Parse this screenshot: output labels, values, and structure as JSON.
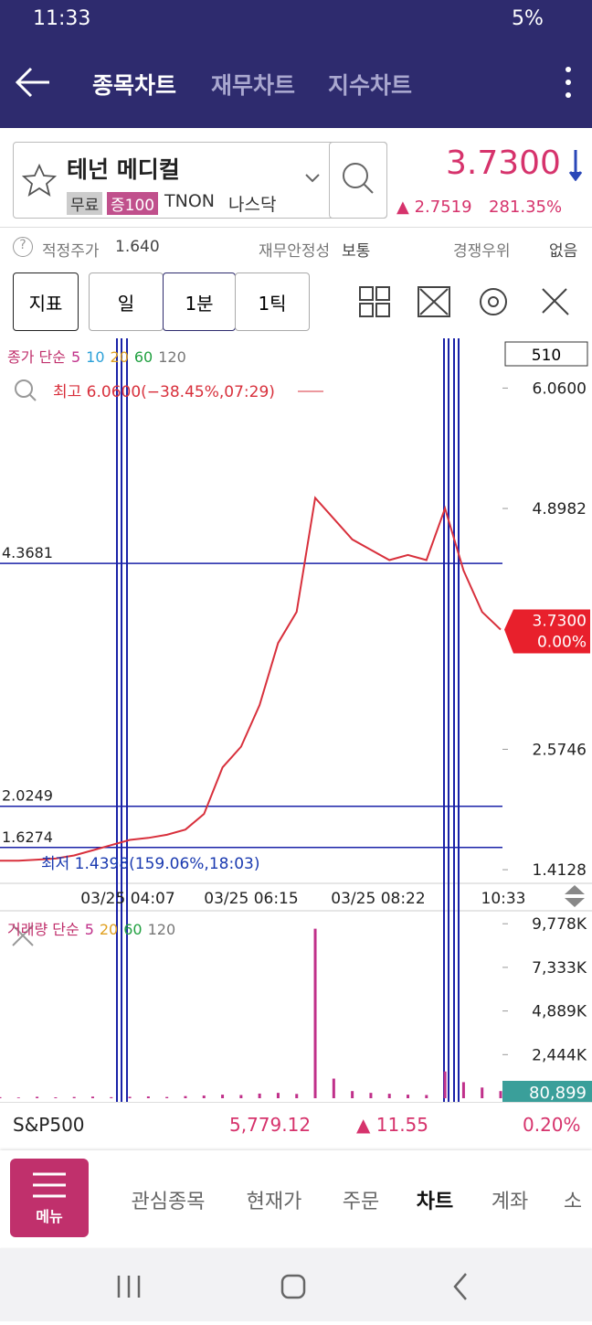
{
  "status_bar": {
    "time": "11:33",
    "battery": "5%"
  },
  "header": {
    "tabs": [
      "종목차트",
      "재무차트",
      "지수차트"
    ]
  },
  "stock": {
    "name": "테넌 메디컬",
    "tags": [
      "무료",
      "증100"
    ],
    "ticker": "TNON",
    "market": "나스닥",
    "price": "3.7300",
    "change": "2.7519",
    "change_pct": "281.35%"
  },
  "info": {
    "items": [
      {
        "label": "적정주가",
        "value": "1.640"
      },
      {
        "label": "재무안정성",
        "value": "보통"
      },
      {
        "label": "경쟁우위",
        "value": "없음"
      }
    ]
  },
  "toolbar": {
    "buttons": [
      "지표",
      "일",
      "1분",
      "1틱"
    ]
  },
  "chart_data": [
    {
      "type": "line",
      "legend_title": "종가 단순",
      "ma": [
        {
          "name": "5",
          "color": "#c0308a"
        },
        {
          "name": "10",
          "color": "#2aa0d8"
        },
        {
          "name": "20",
          "color": "#e0a020"
        },
        {
          "name": "60",
          "color": "#20a040"
        },
        {
          "name": "120",
          "color": "#777777"
        }
      ],
      "count": "510",
      "high_note": "최고 6.0600(−38.45%,07:29)",
      "low_note": "최저 1.4398(159.06%,18:03)",
      "color": "#d8303c",
      "values": [
        1.5,
        1.5,
        1.51,
        1.52,
        1.55,
        1.6,
        1.65,
        1.7,
        1.72,
        1.75,
        1.8,
        1.95,
        2.4,
        2.6,
        3.0,
        3.6,
        3.9,
        5.0,
        4.8,
        4.6,
        4.5,
        4.4,
        4.45,
        4.4,
        4.9,
        4.3,
        3.9,
        3.73
      ],
      "ylim": [
        1.29,
        6.54
      ],
      "yticks": [
        {
          "value": 6.06,
          "label": "6.0600"
        },
        4.8982,
        2.5746,
        1.4128
      ],
      "levels": [
        4.3681,
        2.0249,
        1.6274
      ],
      "last": {
        "value": 3.73,
        "label": "3.7300"
      },
      "last_pct": "0.00%",
      "xlabels": [
        "03/25 04:07",
        "03/25 06:15",
        "03/25 08:22",
        "10:33"
      ]
    },
    {
      "type": "bar",
      "legend_title": "거래량 단순",
      "ma": [
        {
          "name": "5",
          "color": "#c0308a"
        },
        {
          "name": "20",
          "color": "#e0a020"
        },
        {
          "name": "60",
          "color": "#20a040"
        },
        {
          "name": "120",
          "color": "#777777"
        }
      ],
      "color": "#c0308a",
      "values": [
        60,
        40,
        80,
        50,
        70,
        90,
        60,
        80,
        100,
        70,
        120,
        150,
        200,
        180,
        260,
        300,
        240,
        9500,
        1100,
        400,
        300,
        250,
        200,
        180,
        1500,
        900,
        600,
        400
      ],
      "ylim": [
        0,
        10300
      ],
      "yticks": [
        {
          "value": 9778,
          "label": "9,778K"
        },
        {
          "value": 7333,
          "label": "7,333K"
        },
        {
          "value": 4889,
          "label": "4,889K"
        },
        {
          "value": 2444,
          "label": "2,444K"
        }
      ],
      "last_label": "80,899"
    }
  ],
  "index_row": {
    "name": "S&P500",
    "value": "5,779.12",
    "change": "11.55",
    "pct": "0.20%"
  },
  "bottom_nav": {
    "menu": "메뉴",
    "tabs": [
      "관심종목",
      "현재가",
      "주문",
      "차트",
      "계좌",
      "소"
    ]
  }
}
